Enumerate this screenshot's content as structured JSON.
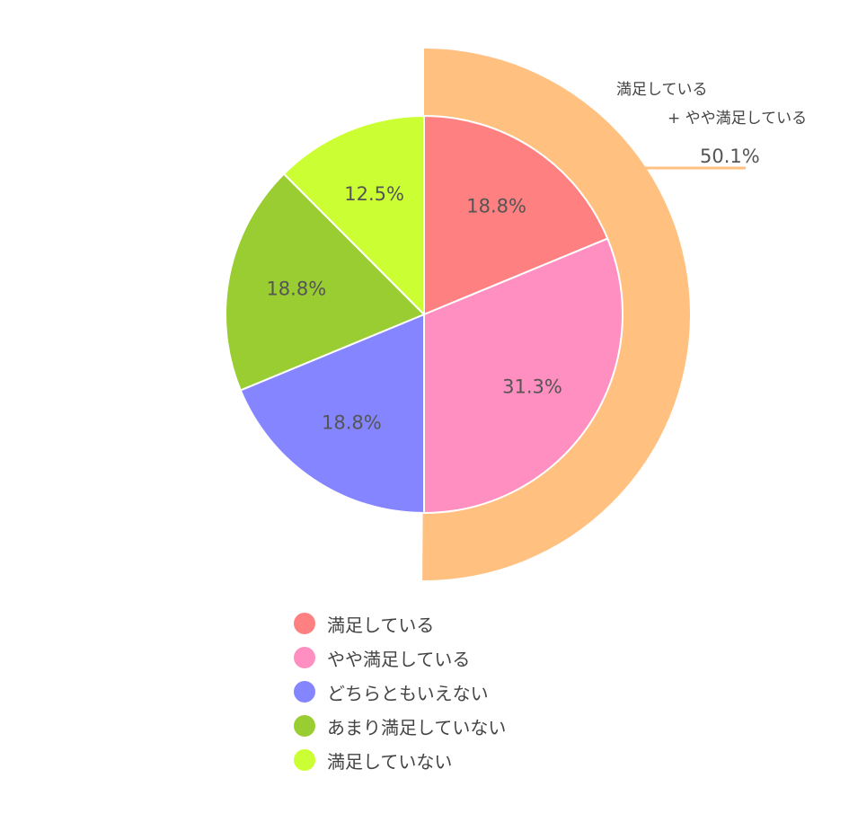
{
  "chart_data": {
    "type": "pie",
    "slices": [
      {
        "label": "満足している",
        "value": 18.8,
        "value_label": "18.8%",
        "color": "#FF8080"
      },
      {
        "label": "やや満足している",
        "value": 31.3,
        "value_label": "31.3%",
        "color": "#FF8FC0"
      },
      {
        "label": "どちらともいえない",
        "value": 18.8,
        "value_label": "18.8%",
        "color": "#8585FF"
      },
      {
        "label": "あまり満足していない",
        "value": 18.8,
        "value_label": "18.8%",
        "color": "#9ACD32"
      },
      {
        "label": "満足していない",
        "value": 12.5,
        "value_label": "12.5%",
        "color": "#CCFF33"
      }
    ],
    "outer_ring": {
      "label_line1": "満足している",
      "label_line2": "+ やや満足している",
      "value": 50.1,
      "value_label": "50.1%",
      "color": "#FFC080"
    },
    "legend_position": "bottom",
    "start_angle": "12 o'clock",
    "direction": "clockwise"
  }
}
